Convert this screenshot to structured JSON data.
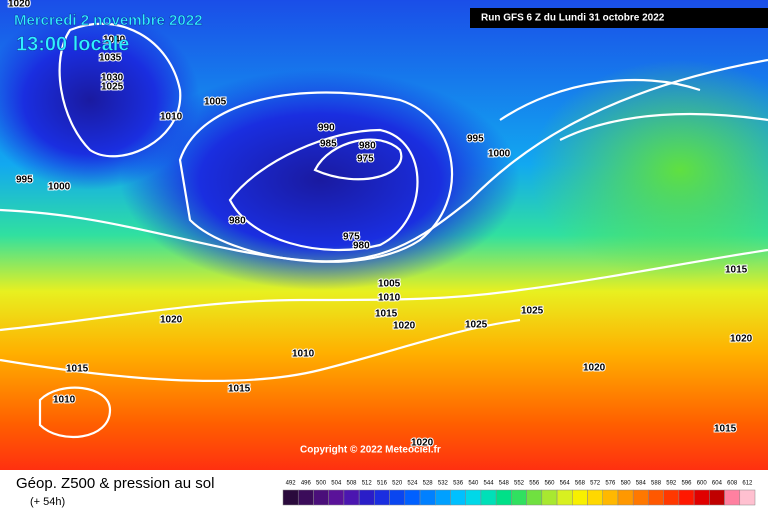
{
  "header": {
    "date": "Mercredi 2 novembre 2022",
    "time": "13:00 locale",
    "run": "Run GFS 6 Z du Lundi 31 octobre 2022"
  },
  "map": {
    "copyright": "Copyright © 2022 Meteociel.fr",
    "isobar_labels": [
      "1020",
      "1040",
      "1035",
      "1030",
      "1025",
      "1010",
      "1005",
      "995",
      "1000",
      "990",
      "985",
      "980",
      "975",
      "980",
      "975",
      "980",
      "995",
      "1000",
      "1005",
      "1010",
      "1015",
      "1020",
      "1025",
      "1025",
      "1020",
      "1010",
      "1015",
      "1015",
      "1010",
      "1020",
      "1020",
      "1015",
      "1020",
      "1015"
    ]
  },
  "footer": {
    "title": "Géop. Z500 & pression au sol",
    "lead": "(+ 54h)"
  },
  "colorbar": {
    "labels": [
      492,
      496,
      500,
      504,
      508,
      512,
      516,
      520,
      524,
      528,
      532,
      536,
      540,
      544,
      548,
      552,
      556,
      560,
      564,
      568,
      572,
      576,
      580,
      584,
      588,
      592,
      596,
      600,
      604,
      608,
      612
    ],
    "colors": [
      "#2a0a3c",
      "#3b0c5a",
      "#4a0f7a",
      "#5a1299",
      "#4b16b0",
      "#2a1ec8",
      "#1a2ee0",
      "#0a46f0",
      "#0060ff",
      "#0080ff",
      "#00a0ff",
      "#00c0ff",
      "#00d8e8",
      "#00e0b8",
      "#00e088",
      "#30e060",
      "#70e040",
      "#a8e830",
      "#d8f020",
      "#f8f000",
      "#ffd800",
      "#ffb800",
      "#ff9800",
      "#ff7800",
      "#ff5800",
      "#ff3800",
      "#ff1800",
      "#e00000",
      "#c00000",
      "#ff80a0",
      "#ffc0d0"
    ]
  }
}
